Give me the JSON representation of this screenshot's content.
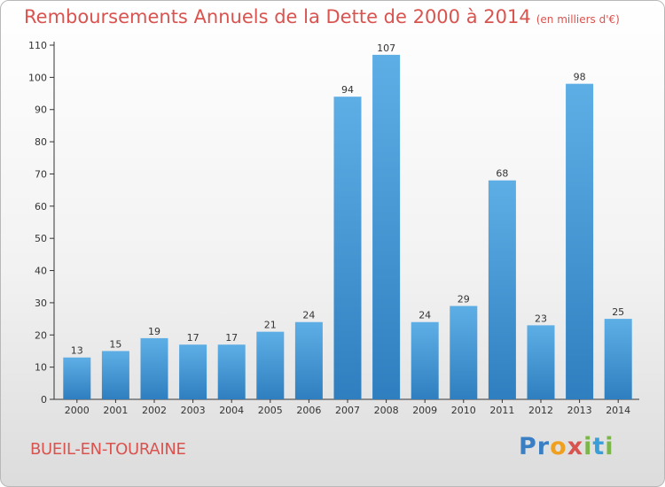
{
  "header": {
    "title": "Remboursements Annuels de la Dette de 2000 à 2014",
    "unit": "(en milliers d'€)"
  },
  "footer": {
    "commune": "BUEIL-EN-TOURAINE",
    "logo_text": "Proxiti",
    "logo_letters": [
      {
        "char": "P",
        "color": "#3a7fc4"
      },
      {
        "char": "r",
        "color": "#3a7fc4"
      },
      {
        "char": "o",
        "color": "#f0a020"
      },
      {
        "char": "x",
        "color": "#d9534f"
      },
      {
        "char": "i",
        "color": "#7ab648"
      },
      {
        "char": "t",
        "color": "#3a9fd8"
      },
      {
        "char": "i",
        "color": "#7ab648"
      }
    ]
  },
  "colors": {
    "title": "#d9534f",
    "bar_top": "#5eaee6",
    "bar_bottom": "#2f7fc0",
    "axis": "#333333",
    "grid": "#e0e0e0"
  },
  "chart_data": {
    "type": "bar",
    "title": "Remboursements Annuels de la Dette de 2000 à 2014",
    "subtitle": "(en milliers d'€)",
    "xlabel": "",
    "ylabel": "",
    "categories": [
      "2000",
      "2001",
      "2002",
      "2003",
      "2004",
      "2005",
      "2006",
      "2007",
      "2008",
      "2009",
      "2010",
      "2011",
      "2012",
      "2013",
      "2014"
    ],
    "values": [
      13,
      15,
      19,
      17,
      17,
      21,
      24,
      94,
      107,
      24,
      29,
      68,
      23,
      98,
      25
    ],
    "ylim": [
      0,
      110
    ],
    "yticks": [
      0,
      10,
      20,
      30,
      40,
      50,
      60,
      70,
      80,
      90,
      100,
      110
    ],
    "grid": false,
    "legend": "none",
    "data_labels": true
  }
}
